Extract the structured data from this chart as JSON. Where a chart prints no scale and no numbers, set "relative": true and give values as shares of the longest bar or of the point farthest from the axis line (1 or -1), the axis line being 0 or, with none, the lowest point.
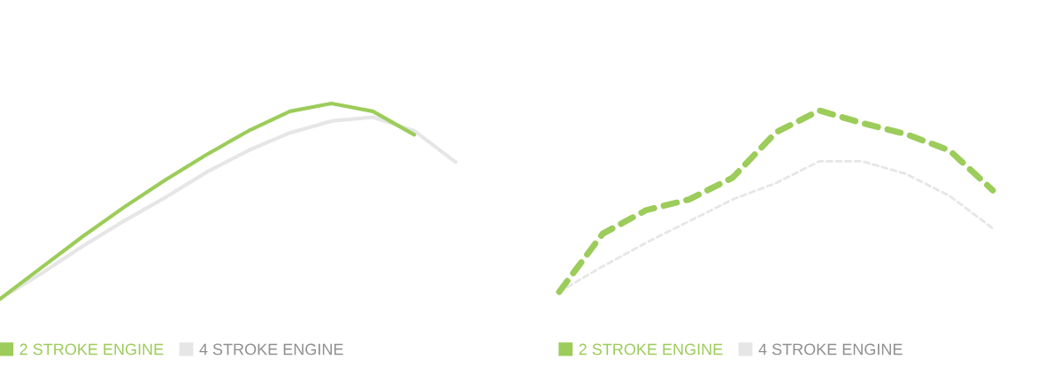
{
  "chart_data": [
    {
      "type": "line",
      "relative": true,
      "categories": [
        null,
        null,
        null,
        null,
        null,
        null,
        null,
        null,
        null,
        null,
        null,
        null
      ],
      "legend": "bottom",
      "line_style": "solid",
      "marker": "none",
      "series": [
        {
          "name": "2 STROKE ENGINE",
          "color": "#9ccc5a",
          "values": [
            0,
            0.16,
            0.32,
            0.47,
            0.61,
            0.74,
            0.86,
            0.96,
            1.0,
            0.96,
            0.84,
            null
          ]
        },
        {
          "name": "4 STROKE ENGINE",
          "color": "#e6e6e6",
          "values": [
            0,
            0.13,
            0.27,
            0.4,
            0.52,
            0.65,
            0.76,
            0.85,
            0.91,
            0.93,
            0.86,
            0.7
          ]
        }
      ]
    },
    {
      "type": "line",
      "relative": true,
      "categories": [
        null,
        null,
        null,
        null,
        null,
        null,
        null,
        null,
        null,
        null,
        null
      ],
      "legend": "bottom",
      "line_style": "dashed",
      "marker": "none",
      "series": [
        {
          "name": "2 STROKE ENGINE",
          "color": "#9ccc5a",
          "values": [
            0,
            0.32,
            0.45,
            0.51,
            0.63,
            0.88,
            1.0,
            0.93,
            0.87,
            0.78,
            0.56
          ]
        },
        {
          "name": "4 STROKE ENGINE",
          "color": "#e6e6e6",
          "values": [
            0,
            0.14,
            0.27,
            0.39,
            0.51,
            0.6,
            0.72,
            0.72,
            0.65,
            0.53,
            0.35
          ]
        }
      ]
    }
  ]
}
